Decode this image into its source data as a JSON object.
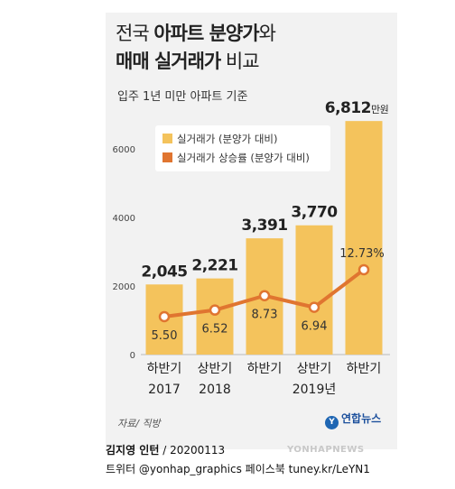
{
  "title": {
    "line1_pre": "전국 ",
    "line1_bold": "아파트 분양가",
    "line1_post": "와",
    "line2_bold": "매매 실거래가",
    "line2_post": " 비교"
  },
  "subtitle": "입주 1년 미만 아파트 기준",
  "legend": {
    "bar": "실거래가 (분양가 대비)",
    "line": "실거래가 상승률 (분양가 대비)"
  },
  "source": "자료/ 직방",
  "logo": "연합뉴스",
  "credit": {
    "name": "김지영 인턴",
    "date": " / 20200113"
  },
  "social": "트위터 @yonhap_graphics  페이스북 tuney.kr/LeYN1",
  "watermark": "YONHAPNEWS",
  "colors": {
    "bar": "#f4c35c",
    "line": "#e07530",
    "panel": "#f2f2f2"
  },
  "chart_data": {
    "type": "bar",
    "categories": [
      [
        "하반기",
        "2017"
      ],
      [
        "상반기",
        "2018"
      ],
      [
        "하반기",
        ""
      ],
      [
        "상반기",
        "2019년"
      ],
      [
        "하반기",
        ""
      ]
    ],
    "series": [
      {
        "name": "실거래가 (분양가 대비)",
        "type": "bar",
        "values": [
          2045,
          2221,
          3391,
          3770,
          6812
        ],
        "labels": [
          "2,045",
          "2,221",
          "3,391",
          "3,770",
          "6,812"
        ],
        "last_label_suffix": "만원"
      },
      {
        "name": "실거래가 상승률 (분양가 대비)",
        "type": "line",
        "values": [
          5.5,
          6.52,
          8.73,
          6.94,
          12.73
        ],
        "labels": [
          "5.50",
          "6.52",
          "8.73",
          "6.94",
          "12.73%"
        ]
      }
    ],
    "yticks": [
      "0",
      "2000",
      "4000",
      "6000"
    ],
    "ylim": [
      0,
      6812
    ]
  }
}
